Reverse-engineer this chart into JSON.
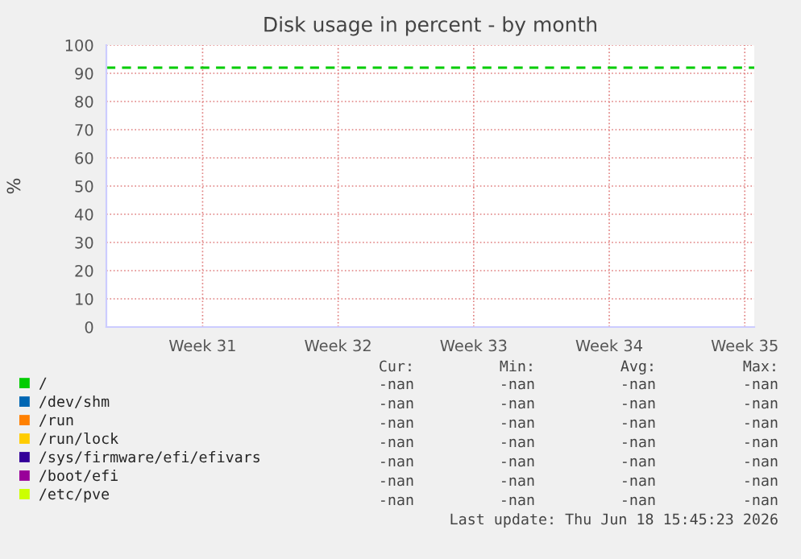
{
  "chart_data": {
    "type": "line",
    "title": "Disk usage in percent - by month",
    "ylabel": "%",
    "series": [
      {
        "name": "/",
        "color": "#00cc00",
        "values": [
          null,
          null,
          null,
          null,
          null
        ]
      },
      {
        "name": "/dev/shm",
        "color": "#0066b3",
        "values": [
          null,
          null,
          null,
          null,
          null
        ]
      },
      {
        "name": "/run",
        "color": "#ff8000",
        "values": [
          null,
          null,
          null,
          null,
          null
        ]
      },
      {
        "name": "/run/lock",
        "color": "#ffcc00",
        "values": [
          null,
          null,
          null,
          null,
          null
        ]
      },
      {
        "name": "/sys/firmware/efi/efivars",
        "color": "#330099",
        "values": [
          null,
          null,
          null,
          null,
          null
        ]
      },
      {
        "name": "/boot/efi",
        "color": "#990099",
        "values": [
          null,
          null,
          null,
          null,
          null
        ]
      },
      {
        "name": "/etc/pve",
        "color": "#ccff00",
        "values": [
          null,
          null,
          null,
          null,
          null
        ]
      }
    ],
    "categories": [
      "Week 31",
      "Week 32",
      "Week 33",
      "Week 34",
      "Week 35"
    ],
    "ylim": [
      0,
      100
    ],
    "yticks": [
      0,
      10,
      20,
      30,
      40,
      50,
      60,
      70,
      80,
      90,
      100
    ],
    "ref_lines": [
      {
        "axis": "y",
        "value": 92,
        "color": "#00cc00",
        "line_style": "dashed"
      }
    ],
    "grid": true,
    "legend": "bottom",
    "annotations": [
      "Cur:",
      "Min:",
      "Avg:",
      "Max:",
      "-nan",
      "-nan",
      "-nan",
      "-nan",
      "-nan",
      "-nan",
      "-nan",
      "-nan",
      "-nan",
      "-nan",
      "-nan",
      "-nan",
      "-nan",
      "-nan",
      "-nan",
      "-nan",
      "-nan",
      "-nan",
      "-nan",
      "-nan",
      "-nan",
      "-nan",
      "-nan",
      "-nan",
      "-nan",
      "-nan",
      "-nan",
      "-nan",
      "Last update: Thu Jun 18 15:45:23 2026"
    ]
  }
}
